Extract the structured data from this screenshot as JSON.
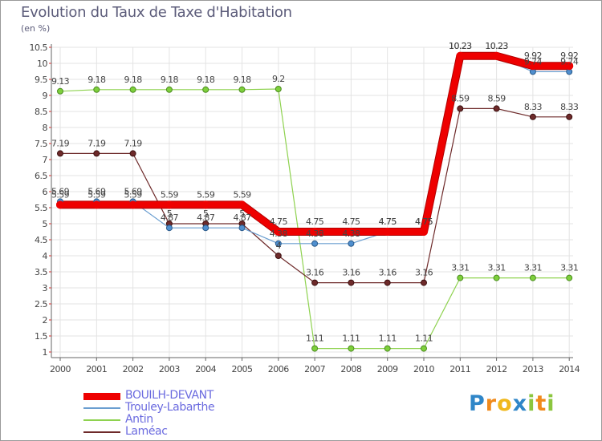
{
  "title": "Evolution du Taux de Taxe d'Habitation",
  "unit": "(en %)",
  "logo": {
    "letters": [
      "P",
      "r",
      "o",
      "x",
      "i",
      "t",
      "i"
    ],
    "colors": [
      "#2f86c8",
      "#f08a1c",
      "#f0b81c",
      "#2f86c8",
      "#8cc63f",
      "#f08a1c",
      "#8cc63f"
    ]
  },
  "chart_data": {
    "type": "line",
    "x": [
      "2000",
      "2001",
      "2002",
      "2003",
      "2004",
      "2005",
      "2006",
      "2007",
      "2008",
      "2009",
      "2010",
      "2011",
      "2012",
      "2013",
      "2014"
    ],
    "ylim": [
      1,
      10.5
    ],
    "yticks": [
      "1",
      "1.5",
      "2",
      "2.5",
      "3",
      "3.5",
      "4",
      "4.5",
      "5",
      "5.5",
      "6",
      "6.5",
      "7",
      "7.5",
      "8",
      "8.5",
      "9",
      "9.5",
      "10",
      "10.5"
    ],
    "grid": true,
    "legend_position": "bottom-left",
    "series": [
      {
        "name": "BOUILH-DEVANT",
        "color": "#ee0000",
        "values": [
          5.59,
          5.59,
          5.59,
          5.59,
          5.59,
          5.59,
          4.75,
          4.75,
          4.75,
          4.75,
          4.75,
          10.23,
          10.23,
          9.92,
          9.92
        ],
        "labels": [
          "5.59",
          "5.59",
          "5.59",
          "5.59",
          "5.59",
          "5.59",
          "4.75",
          "4.75",
          "4.75",
          "4.75",
          "4.75",
          "10.23",
          "10.23",
          "9.92",
          "9.92"
        ]
      },
      {
        "name": "Trouley-Labarthe",
        "color": "#6a9ed0",
        "values": [
          5.69,
          5.69,
          5.69,
          4.87,
          4.87,
          4.87,
          4.38,
          4.38,
          4.38,
          4.75,
          4.75,
          10.23,
          10.23,
          9.74,
          9.74
        ],
        "labels": [
          "5.69",
          "5.69",
          "5.69",
          "4.87",
          "4.87",
          "4.87",
          "4.38",
          "4.38",
          "4.38",
          "4.75",
          "4.75",
          "10.23",
          "10.23",
          "9.74",
          "9.74"
        ]
      },
      {
        "name": "Antin",
        "color": "#8ed24f",
        "values": [
          9.13,
          9.18,
          9.18,
          9.18,
          9.18,
          9.18,
          9.2,
          1.11,
          1.11,
          1.11,
          1.11,
          3.31,
          3.31,
          3.31,
          3.31
        ],
        "labels": [
          "9.13",
          "9.18",
          "9.18",
          "9.18",
          "9.18",
          "9.18",
          "9.2",
          "1.11",
          "1.11",
          "1.11",
          "1.11",
          "3.31",
          "3.31",
          "3.31",
          "3.31"
        ]
      },
      {
        "name": "Laméac",
        "color": "#6e2a2a",
        "values": [
          7.19,
          7.19,
          7.19,
          5,
          5,
          5,
          4,
          3.16,
          3.16,
          3.16,
          3.16,
          8.59,
          8.59,
          8.33,
          8.33
        ],
        "labels": [
          "7.19",
          "7.19",
          "7.19",
          "5",
          "5",
          "5",
          "4",
          "3.16",
          "3.16",
          "3.16",
          "3.16",
          "8.59",
          "8.59",
          "8.33",
          "8.33"
        ]
      }
    ]
  }
}
